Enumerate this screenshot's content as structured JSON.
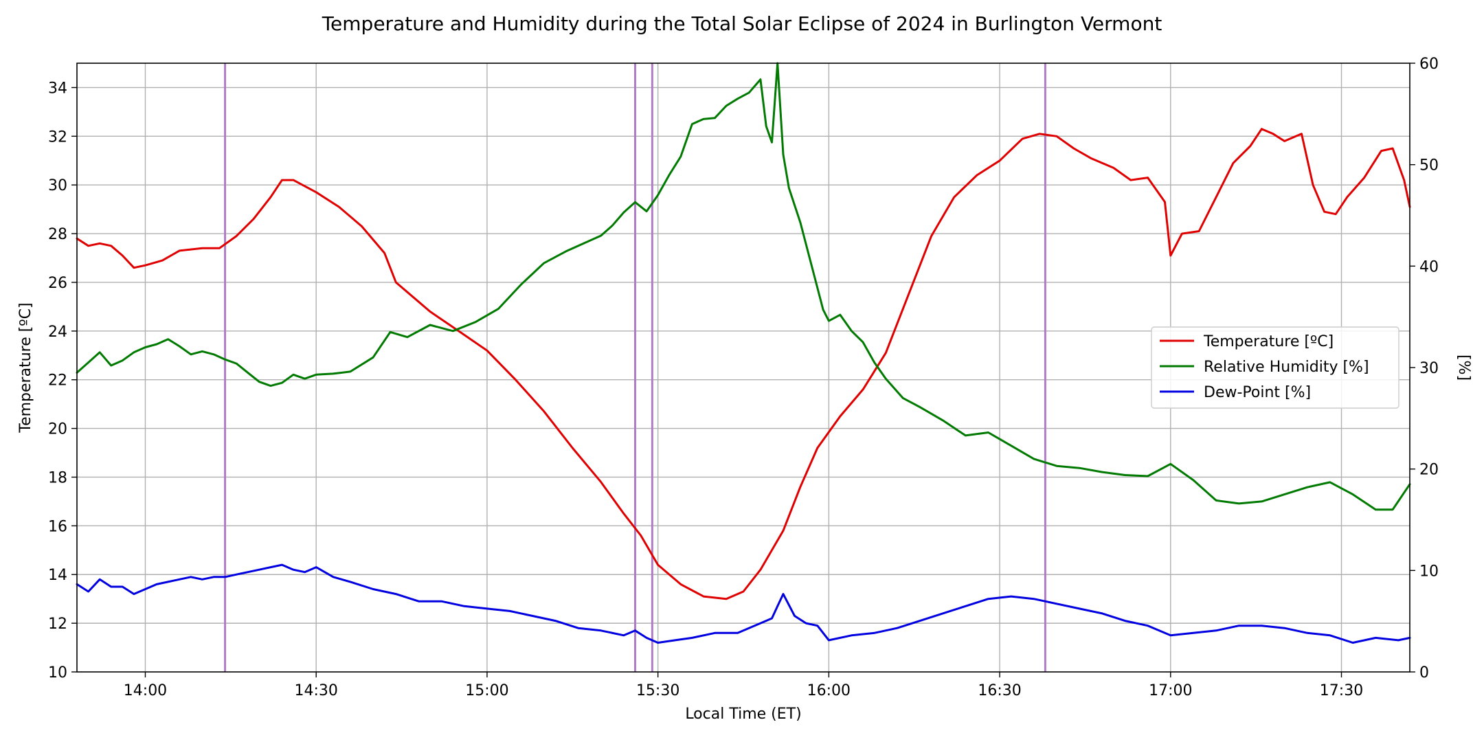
{
  "chart_data": {
    "type": "line",
    "title": "Temperature and Humidity during the Total Solar Eclipse of 2024 in Burlington Vermont",
    "xlabel": "Local Time (ET)",
    "ylabel_left": "Temperature [ºC]",
    "ylabel_right": "[%]",
    "x_unit": "local time (HH:MM)",
    "xlim": [
      "13:48",
      "17:42"
    ],
    "ylim_left": [
      10,
      35
    ],
    "ylim_right": [
      0,
      60
    ],
    "x_ticks": [
      "14:00",
      "14:30",
      "15:00",
      "15:30",
      "16:00",
      "16:30",
      "17:00",
      "17:30"
    ],
    "y_ticks_left": [
      10,
      12,
      14,
      16,
      18,
      20,
      22,
      24,
      26,
      28,
      30,
      32,
      34
    ],
    "y_ticks_right": [
      0,
      10,
      20,
      30,
      40,
      50,
      60
    ],
    "grid": true,
    "legend_position": "center-right",
    "colors": {
      "temperature": "#e00000",
      "humidity": "#007a00",
      "dewpoint": "#0000e0",
      "vline": "#b07cc6",
      "grid": "#b0b0b0"
    },
    "vertical_lines": [
      "14:14",
      "15:26",
      "15:29",
      "16:38"
    ],
    "series": [
      {
        "name": "Temperature [ºC]",
        "axis": "left",
        "color": "#e00000",
        "x": [
          "13:48",
          "13:50",
          "13:52",
          "13:54",
          "13:56",
          "13:58",
          "14:00",
          "14:03",
          "14:06",
          "14:10",
          "14:13",
          "14:16",
          "14:19",
          "14:22",
          "14:24",
          "14:26",
          "14:30",
          "14:34",
          "14:38",
          "14:42",
          "14:44",
          "14:47",
          "14:50",
          "14:55",
          "15:00",
          "15:05",
          "15:10",
          "15:15",
          "15:20",
          "15:24",
          "15:27",
          "15:30",
          "15:34",
          "15:38",
          "15:42",
          "15:45",
          "15:48",
          "15:52",
          "15:55",
          "15:58",
          "16:02",
          "16:06",
          "16:10",
          "16:14",
          "16:18",
          "16:22",
          "16:26",
          "16:30",
          "16:34",
          "16:37",
          "16:40",
          "16:43",
          "16:46",
          "16:50",
          "16:53",
          "16:56",
          "16:59",
          "17:00",
          "17:02",
          "17:05",
          "17:08",
          "17:11",
          "17:14",
          "17:16",
          "17:18",
          "17:20",
          "17:22",
          "17:23",
          "17:25",
          "17:27",
          "17:29",
          "17:31",
          "17:34",
          "17:37",
          "17:39",
          "17:41",
          "17:42"
        ],
        "y": [
          27.8,
          27.5,
          27.6,
          27.5,
          27.1,
          26.6,
          26.7,
          26.9,
          27.3,
          27.4,
          27.4,
          27.9,
          28.6,
          29.5,
          30.2,
          30.2,
          29.7,
          29.1,
          28.3,
          27.2,
          26.0,
          25.4,
          24.8,
          24.0,
          23.2,
          22.0,
          20.7,
          19.2,
          17.8,
          16.5,
          15.6,
          14.4,
          13.6,
          13.1,
          13.0,
          13.3,
          14.2,
          15.8,
          17.6,
          19.2,
          20.5,
          21.6,
          23.1,
          25.5,
          27.9,
          29.5,
          30.4,
          31.0,
          31.9,
          32.1,
          32.0,
          31.5,
          31.1,
          30.7,
          30.2,
          30.3,
          29.3,
          27.1,
          28.0,
          28.1,
          29.5,
          30.9,
          31.6,
          32.3,
          32.1,
          31.8,
          32.0,
          32.1,
          30.0,
          28.9,
          28.8,
          29.5,
          30.3,
          31.4,
          31.5,
          30.2,
          29.1
        ]
      },
      {
        "name": "Relative Humidity [%]",
        "axis": "right",
        "color": "#007a00",
        "x": [
          "13:48",
          "13:50",
          "13:52",
          "13:54",
          "13:56",
          "13:58",
          "14:00",
          "14:02",
          "14:04",
          "14:06",
          "14:08",
          "14:10",
          "14:12",
          "14:14",
          "14:16",
          "14:18",
          "14:20",
          "14:22",
          "14:24",
          "14:26",
          "14:28",
          "14:30",
          "14:33",
          "14:36",
          "14:40",
          "14:43",
          "14:46",
          "14:50",
          "14:54",
          "14:58",
          "15:02",
          "15:06",
          "15:10",
          "15:14",
          "15:18",
          "15:20",
          "15:22",
          "15:24",
          "15:26",
          "15:28",
          "15:30",
          "15:32",
          "15:34",
          "15:36",
          "15:38",
          "15:40",
          "15:42",
          "15:44",
          "15:46",
          "15:48",
          "15:49",
          "15:50",
          "15:51",
          "15:52",
          "15:53",
          "15:55",
          "15:57",
          "15:59",
          "16:00",
          "16:02",
          "16:04",
          "16:06",
          "16:08",
          "16:10",
          "16:13",
          "16:16",
          "16:20",
          "16:24",
          "16:28",
          "16:32",
          "16:36",
          "16:40",
          "16:44",
          "16:48",
          "16:52",
          "16:56",
          "17:00",
          "17:04",
          "17:08",
          "17:12",
          "17:16",
          "17:20",
          "17:24",
          "17:28",
          "17:32",
          "17:36",
          "17:39",
          "17:42"
        ],
        "y": [
          29.5,
          30.5,
          31.5,
          30.2,
          30.7,
          31.5,
          32.0,
          32.3,
          32.8,
          32.1,
          31.3,
          31.6,
          31.3,
          30.8,
          30.4,
          29.5,
          28.6,
          28.2,
          28.5,
          29.3,
          28.9,
          29.3,
          29.4,
          29.6,
          31.0,
          33.5,
          33.0,
          34.2,
          33.6,
          34.5,
          35.8,
          38.2,
          40.3,
          41.5,
          42.5,
          43.0,
          44.0,
          45.3,
          46.3,
          45.4,
          47.0,
          49.0,
          50.8,
          54.0,
          54.5,
          54.6,
          55.8,
          56.5,
          57.1,
          58.4,
          53.8,
          52.2,
          60.0,
          51.0,
          47.7,
          44.3,
          40.0,
          35.7,
          34.6,
          35.2,
          33.6,
          32.5,
          30.5,
          28.9,
          27.0,
          26.1,
          24.8,
          23.3,
          23.6,
          22.3,
          21.0,
          20.3,
          20.1,
          19.7,
          19.4,
          19.3,
          20.5,
          18.9,
          16.9,
          16.6,
          16.8,
          17.5,
          18.2,
          18.7,
          17.5,
          16.0,
          16.0,
          18.5
        ]
      },
      {
        "name": "Dew-Point [%]",
        "axis": "left",
        "color": "#0000e0",
        "x": [
          "13:48",
          "13:50",
          "13:52",
          "13:54",
          "13:56",
          "13:58",
          "14:00",
          "14:02",
          "14:04",
          "14:06",
          "14:08",
          "14:10",
          "14:12",
          "14:14",
          "14:16",
          "14:18",
          "14:20",
          "14:22",
          "14:24",
          "14:26",
          "14:28",
          "14:30",
          "14:33",
          "14:36",
          "14:40",
          "14:44",
          "14:48",
          "14:52",
          "14:56",
          "15:00",
          "15:04",
          "15:08",
          "15:12",
          "15:16",
          "15:20",
          "15:24",
          "15:26",
          "15:28",
          "15:30",
          "15:33",
          "15:36",
          "15:40",
          "15:44",
          "15:48",
          "15:50",
          "15:51",
          "15:52",
          "15:54",
          "15:56",
          "15:58",
          "16:00",
          "16:04",
          "16:08",
          "16:12",
          "16:16",
          "16:20",
          "16:24",
          "16:28",
          "16:32",
          "16:36",
          "16:40",
          "16:44",
          "16:48",
          "16:52",
          "16:56",
          "17:00",
          "17:04",
          "17:08",
          "17:12",
          "17:16",
          "17:20",
          "17:24",
          "17:28",
          "17:32",
          "17:36",
          "17:40",
          "17:42"
        ],
        "y": [
          13.6,
          13.3,
          13.8,
          13.5,
          13.5,
          13.2,
          13.4,
          13.6,
          13.7,
          13.8,
          13.9,
          13.8,
          13.9,
          13.9,
          14.0,
          14.1,
          14.2,
          14.3,
          14.4,
          14.2,
          14.1,
          14.3,
          13.9,
          13.7,
          13.4,
          13.2,
          12.9,
          12.9,
          12.7,
          12.6,
          12.5,
          12.3,
          12.1,
          11.8,
          11.7,
          11.5,
          11.7,
          11.4,
          11.2,
          11.3,
          11.4,
          11.6,
          11.6,
          12.0,
          12.2,
          12.7,
          13.2,
          12.3,
          12.0,
          11.9,
          11.3,
          11.5,
          11.6,
          11.8,
          12.1,
          12.4,
          12.7,
          13.0,
          13.1,
          13.0,
          12.8,
          12.6,
          12.4,
          12.1,
          11.9,
          11.5,
          11.6,
          11.7,
          11.9,
          11.9,
          11.8,
          11.6,
          11.5,
          11.2,
          11.4,
          11.3,
          11.4
        ]
      }
    ]
  }
}
